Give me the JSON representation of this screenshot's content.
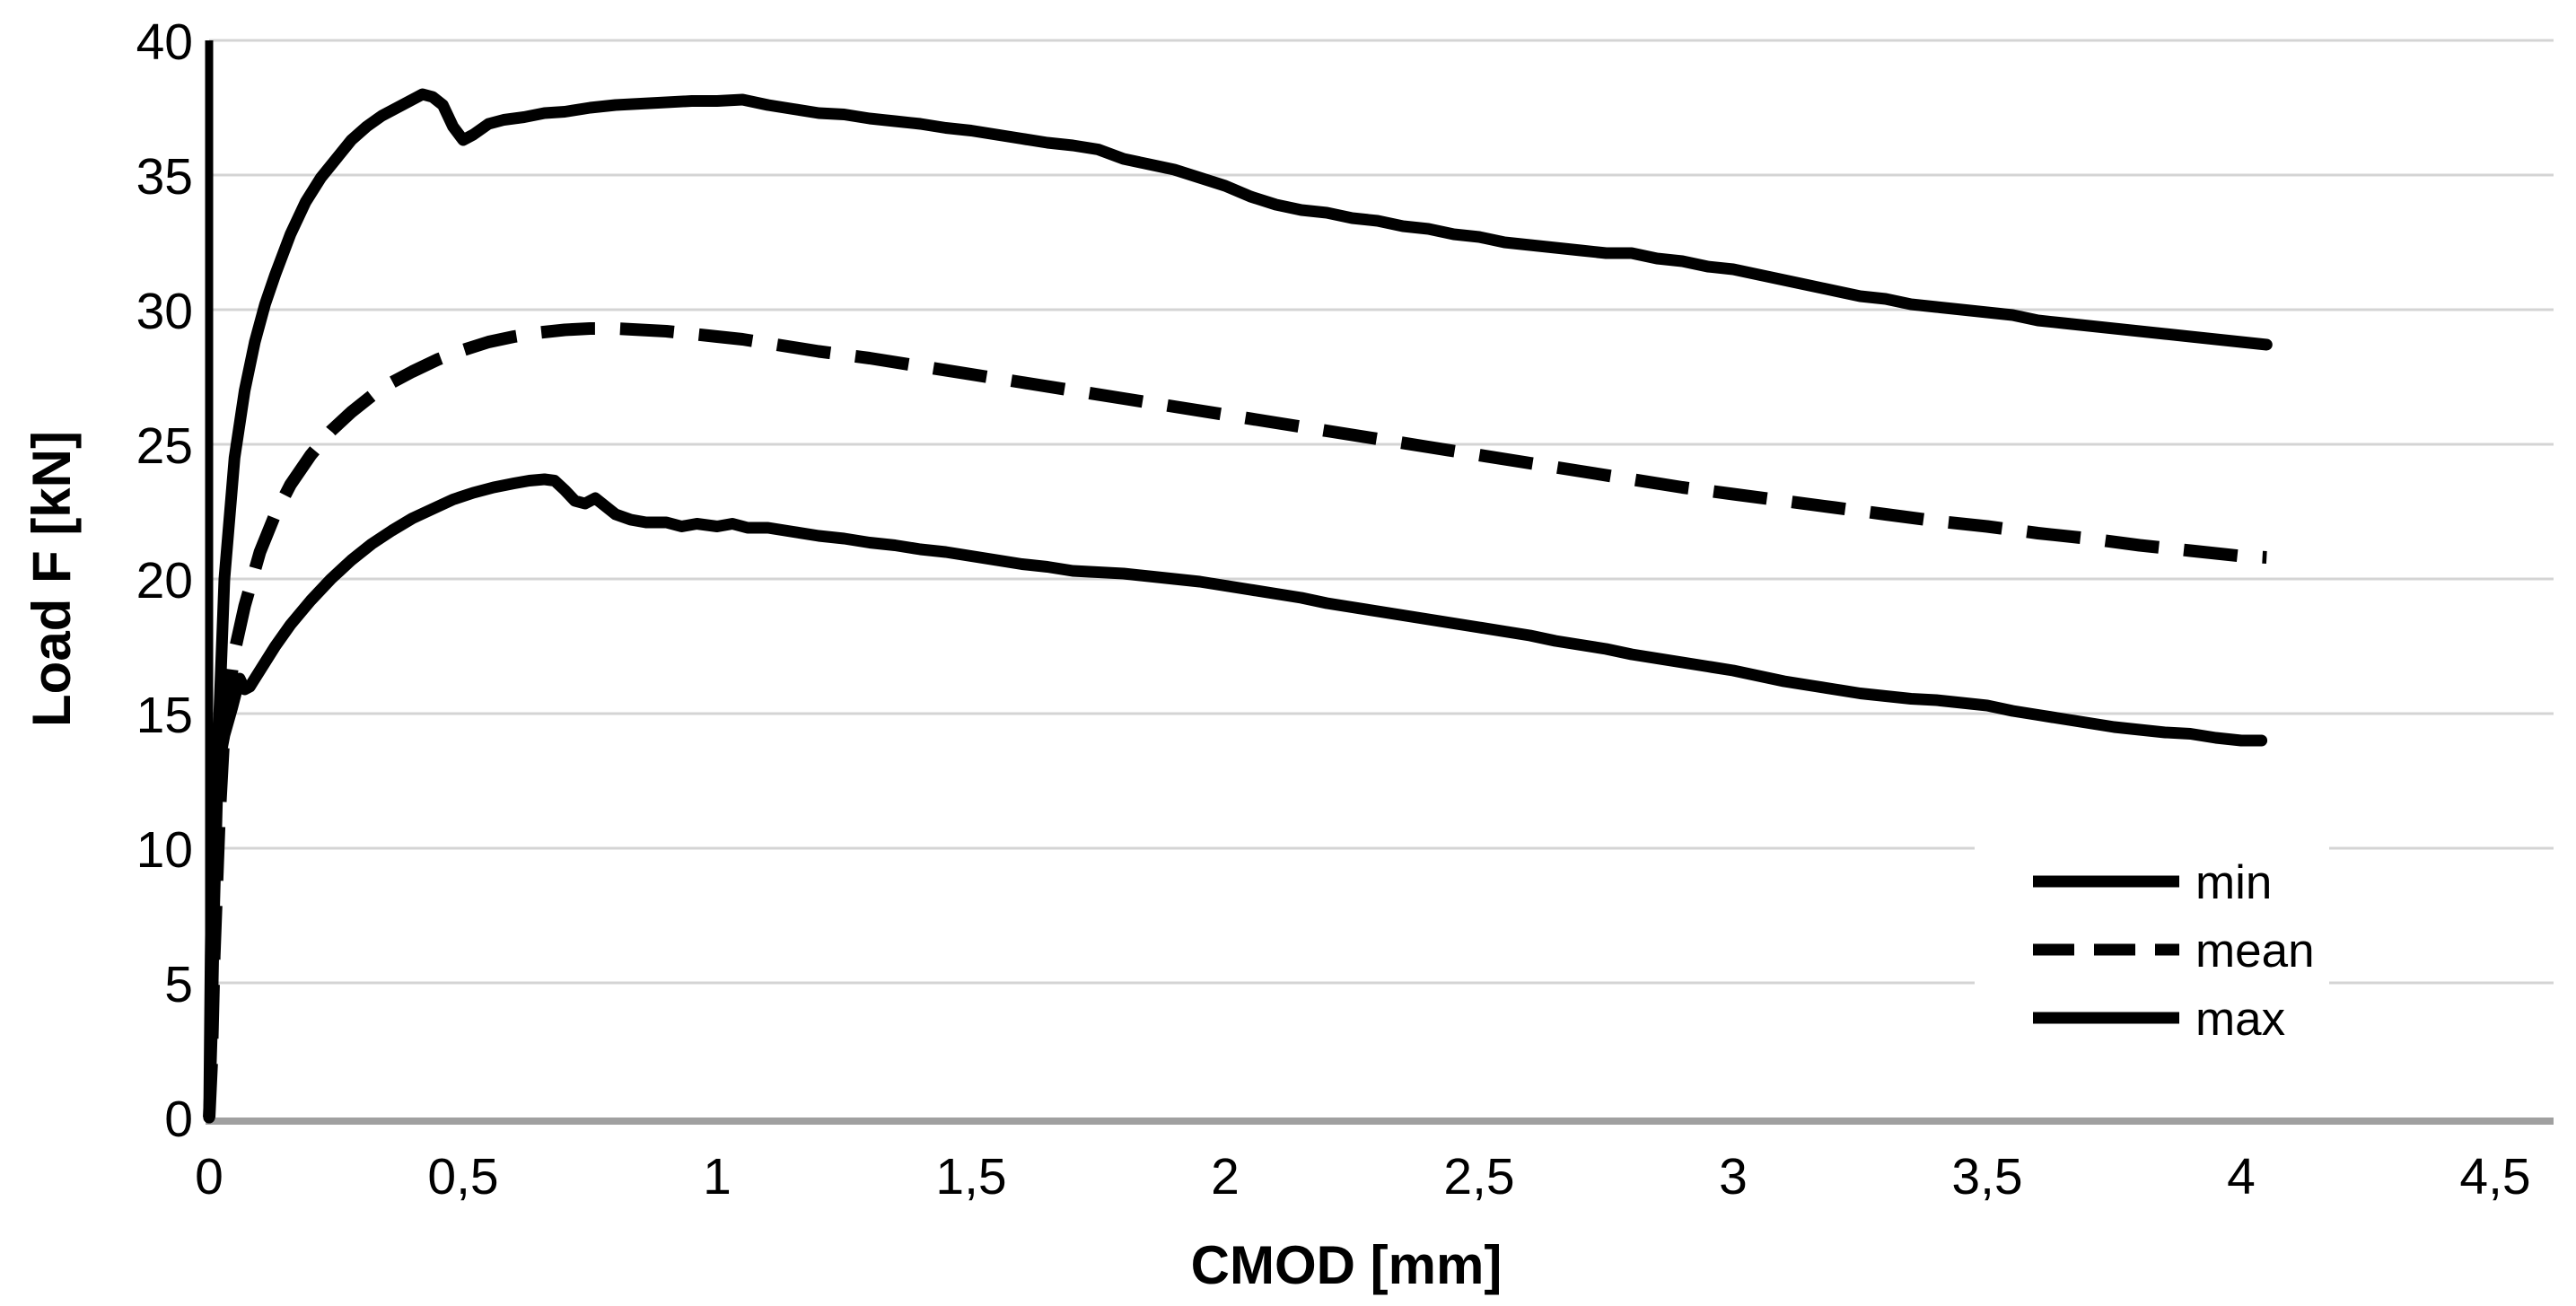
{
  "chart_data": {
    "type": "line",
    "title": "",
    "xlabel": "CMOD [mm]",
    "ylabel": "Load F [kN]",
    "xlim": [
      0,
      4.5
    ],
    "ylim": [
      0,
      40
    ],
    "x_ticks": [
      0,
      0.5,
      1,
      1.5,
      2,
      2.5,
      3,
      3.5,
      4,
      4.5
    ],
    "x_tick_labels": [
      "0",
      "0,5",
      "1",
      "1,5",
      "2",
      "2,5",
      "3",
      "3,5",
      "4",
      "4,5"
    ],
    "y_ticks": [
      0,
      5,
      10,
      15,
      20,
      25,
      30,
      35,
      40
    ],
    "y_tick_labels": [
      "0",
      "5",
      "10",
      "15",
      "20",
      "25",
      "30",
      "35",
      "40"
    ],
    "grid": "horizontal-only",
    "gridline_color": "#d4d4d4",
    "x_axis_color": "#a0a0a0",
    "y_axis_color": "#000000",
    "curve_color": "#000000",
    "legend_position": "inside-bottom-right",
    "series": [
      {
        "name": "min",
        "style": "solid",
        "color": "#000000",
        "points": [
          [
            0,
            0
          ],
          [
            0.003,
            6
          ],
          [
            0.006,
            10.5
          ],
          [
            0.008,
            12.4
          ],
          [
            0.012,
            11.6
          ],
          [
            0.02,
            13.2
          ],
          [
            0.03,
            14.2
          ],
          [
            0.045,
            15.2
          ],
          [
            0.06,
            16.3
          ],
          [
            0.07,
            15.9
          ],
          [
            0.08,
            16.0
          ],
          [
            0.1,
            16.6
          ],
          [
            0.13,
            17.5
          ],
          [
            0.16,
            18.3
          ],
          [
            0.2,
            19.2
          ],
          [
            0.24,
            20.0
          ],
          [
            0.28,
            20.7
          ],
          [
            0.32,
            21.3
          ],
          [
            0.36,
            21.8
          ],
          [
            0.4,
            22.25
          ],
          [
            0.44,
            22.6
          ],
          [
            0.48,
            22.95
          ],
          [
            0.52,
            23.2
          ],
          [
            0.56,
            23.4
          ],
          [
            0.6,
            23.55
          ],
          [
            0.63,
            23.65
          ],
          [
            0.66,
            23.7
          ],
          [
            0.68,
            23.65
          ],
          [
            0.7,
            23.3
          ],
          [
            0.72,
            22.9
          ],
          [
            0.74,
            22.8
          ],
          [
            0.76,
            23.0
          ],
          [
            0.78,
            22.7
          ],
          [
            0.8,
            22.4
          ],
          [
            0.83,
            22.2
          ],
          [
            0.86,
            22.1
          ],
          [
            0.9,
            22.1
          ],
          [
            0.93,
            21.95
          ],
          [
            0.96,
            22.05
          ],
          [
            1.0,
            21.95
          ],
          [
            1.03,
            22.05
          ],
          [
            1.06,
            21.9
          ],
          [
            1.1,
            21.9
          ],
          [
            1.15,
            21.75
          ],
          [
            1.2,
            21.6
          ],
          [
            1.25,
            21.5
          ],
          [
            1.3,
            21.35
          ],
          [
            1.35,
            21.25
          ],
          [
            1.4,
            21.1
          ],
          [
            1.45,
            21.0
          ],
          [
            1.5,
            20.85
          ],
          [
            1.55,
            20.7
          ],
          [
            1.6,
            20.55
          ],
          [
            1.65,
            20.45
          ],
          [
            1.7,
            20.3
          ],
          [
            1.75,
            20.25
          ],
          [
            1.8,
            20.2
          ],
          [
            1.85,
            20.1
          ],
          [
            1.9,
            20.0
          ],
          [
            1.95,
            19.9
          ],
          [
            2.0,
            19.75
          ],
          [
            2.05,
            19.6
          ],
          [
            2.1,
            19.45
          ],
          [
            2.15,
            19.3
          ],
          [
            2.2,
            19.1
          ],
          [
            2.25,
            18.95
          ],
          [
            2.3,
            18.8
          ],
          [
            2.35,
            18.65
          ],
          [
            2.4,
            18.5
          ],
          [
            2.45,
            18.35
          ],
          [
            2.5,
            18.2
          ],
          [
            2.55,
            18.05
          ],
          [
            2.6,
            17.9
          ],
          [
            2.65,
            17.7
          ],
          [
            2.7,
            17.55
          ],
          [
            2.75,
            17.4
          ],
          [
            2.8,
            17.2
          ],
          [
            2.85,
            17.05
          ],
          [
            2.9,
            16.9
          ],
          [
            2.95,
            16.75
          ],
          [
            3.0,
            16.6
          ],
          [
            3.05,
            16.4
          ],
          [
            3.1,
            16.2
          ],
          [
            3.15,
            16.05
          ],
          [
            3.2,
            15.9
          ],
          [
            3.25,
            15.75
          ],
          [
            3.3,
            15.65
          ],
          [
            3.35,
            15.55
          ],
          [
            3.4,
            15.5
          ],
          [
            3.45,
            15.4
          ],
          [
            3.5,
            15.3
          ],
          [
            3.55,
            15.1
          ],
          [
            3.6,
            14.95
          ],
          [
            3.65,
            14.8
          ],
          [
            3.7,
            14.65
          ],
          [
            3.75,
            14.5
          ],
          [
            3.8,
            14.4
          ],
          [
            3.85,
            14.3
          ],
          [
            3.9,
            14.25
          ],
          [
            3.95,
            14.1
          ],
          [
            4.0,
            14.0
          ],
          [
            4.04,
            14.0
          ]
        ]
      },
      {
        "name": "mean",
        "style": "dashed",
        "color": "#000000",
        "points": [
          [
            0,
            0
          ],
          [
            0.005,
            2
          ],
          [
            0.01,
            6
          ],
          [
            0.02,
            11
          ],
          [
            0.03,
            14.5
          ],
          [
            0.05,
            17.3
          ],
          [
            0.07,
            19.0
          ],
          [
            0.1,
            21.0
          ],
          [
            0.13,
            22.4
          ],
          [
            0.16,
            23.5
          ],
          [
            0.2,
            24.6
          ],
          [
            0.24,
            25.5
          ],
          [
            0.28,
            26.2
          ],
          [
            0.32,
            26.8
          ],
          [
            0.36,
            27.3
          ],
          [
            0.4,
            27.7
          ],
          [
            0.45,
            28.15
          ],
          [
            0.5,
            28.5
          ],
          [
            0.55,
            28.8
          ],
          [
            0.6,
            29.0
          ],
          [
            0.65,
            29.15
          ],
          [
            0.7,
            29.25
          ],
          [
            0.75,
            29.3
          ],
          [
            0.8,
            29.3
          ],
          [
            0.85,
            29.25
          ],
          [
            0.9,
            29.2
          ],
          [
            0.95,
            29.1
          ],
          [
            1.0,
            29.0
          ],
          [
            1.05,
            28.9
          ],
          [
            1.1,
            28.75
          ],
          [
            1.15,
            28.6
          ],
          [
            1.2,
            28.45
          ],
          [
            1.3,
            28.2
          ],
          [
            1.4,
            27.9
          ],
          [
            1.5,
            27.6
          ],
          [
            1.6,
            27.3
          ],
          [
            1.7,
            27.0
          ],
          [
            1.8,
            26.7
          ],
          [
            1.9,
            26.4
          ],
          [
            2.0,
            26.1
          ],
          [
            2.1,
            25.8
          ],
          [
            2.2,
            25.5
          ],
          [
            2.3,
            25.2
          ],
          [
            2.4,
            24.9
          ],
          [
            2.5,
            24.6
          ],
          [
            2.6,
            24.3
          ],
          [
            2.7,
            24.0
          ],
          [
            2.8,
            23.7
          ],
          [
            2.9,
            23.4
          ],
          [
            3.0,
            23.15
          ],
          [
            3.1,
            22.9
          ],
          [
            3.2,
            22.65
          ],
          [
            3.3,
            22.4
          ],
          [
            3.4,
            22.15
          ],
          [
            3.5,
            21.95
          ],
          [
            3.6,
            21.7
          ],
          [
            3.7,
            21.5
          ],
          [
            3.8,
            21.25
          ],
          [
            3.9,
            21.05
          ],
          [
            4.0,
            20.85
          ],
          [
            4.05,
            20.8
          ]
        ]
      },
      {
        "name": "max",
        "style": "solid",
        "color": "#000000",
        "points": [
          [
            0,
            0
          ],
          [
            0.005,
            3
          ],
          [
            0.01,
            8
          ],
          [
            0.02,
            15
          ],
          [
            0.03,
            20
          ],
          [
            0.05,
            24.5
          ],
          [
            0.07,
            27.0
          ],
          [
            0.09,
            28.8
          ],
          [
            0.11,
            30.2
          ],
          [
            0.13,
            31.3
          ],
          [
            0.16,
            32.8
          ],
          [
            0.19,
            34.0
          ],
          [
            0.22,
            34.9
          ],
          [
            0.25,
            35.6
          ],
          [
            0.28,
            36.3
          ],
          [
            0.31,
            36.8
          ],
          [
            0.34,
            37.2
          ],
          [
            0.37,
            37.5
          ],
          [
            0.4,
            37.8
          ],
          [
            0.42,
            38.0
          ],
          [
            0.44,
            37.9
          ],
          [
            0.46,
            37.6
          ],
          [
            0.48,
            36.8
          ],
          [
            0.5,
            36.3
          ],
          [
            0.52,
            36.5
          ],
          [
            0.55,
            36.9
          ],
          [
            0.58,
            37.05
          ],
          [
            0.62,
            37.15
          ],
          [
            0.66,
            37.3
          ],
          [
            0.7,
            37.35
          ],
          [
            0.75,
            37.5
          ],
          [
            0.8,
            37.6
          ],
          [
            0.85,
            37.65
          ],
          [
            0.9,
            37.7
          ],
          [
            0.95,
            37.75
          ],
          [
            1.0,
            37.75
          ],
          [
            1.05,
            37.8
          ],
          [
            1.1,
            37.6
          ],
          [
            1.15,
            37.45
          ],
          [
            1.2,
            37.3
          ],
          [
            1.25,
            37.25
          ],
          [
            1.3,
            37.1
          ],
          [
            1.35,
            37.0
          ],
          [
            1.4,
            36.9
          ],
          [
            1.45,
            36.75
          ],
          [
            1.5,
            36.65
          ],
          [
            1.55,
            36.5
          ],
          [
            1.6,
            36.35
          ],
          [
            1.65,
            36.2
          ],
          [
            1.7,
            36.1
          ],
          [
            1.75,
            35.95
          ],
          [
            1.8,
            35.6
          ],
          [
            1.85,
            35.4
          ],
          [
            1.9,
            35.2
          ],
          [
            1.95,
            34.9
          ],
          [
            2.0,
            34.6
          ],
          [
            2.05,
            34.2
          ],
          [
            2.1,
            33.9
          ],
          [
            2.15,
            33.7
          ],
          [
            2.2,
            33.6
          ],
          [
            2.25,
            33.4
          ],
          [
            2.3,
            33.3
          ],
          [
            2.35,
            33.1
          ],
          [
            2.4,
            33.0
          ],
          [
            2.45,
            32.8
          ],
          [
            2.5,
            32.7
          ],
          [
            2.55,
            32.5
          ],
          [
            2.6,
            32.4
          ],
          [
            2.65,
            32.3
          ],
          [
            2.7,
            32.2
          ],
          [
            2.75,
            32.1
          ],
          [
            2.8,
            32.1
          ],
          [
            2.85,
            31.9
          ],
          [
            2.9,
            31.8
          ],
          [
            2.95,
            31.6
          ],
          [
            3.0,
            31.5
          ],
          [
            3.05,
            31.3
          ],
          [
            3.1,
            31.1
          ],
          [
            3.15,
            30.9
          ],
          [
            3.2,
            30.7
          ],
          [
            3.25,
            30.5
          ],
          [
            3.3,
            30.4
          ],
          [
            3.35,
            30.2
          ],
          [
            3.4,
            30.1
          ],
          [
            3.45,
            30.0
          ],
          [
            3.5,
            29.9
          ],
          [
            3.55,
            29.8
          ],
          [
            3.6,
            29.6
          ],
          [
            3.65,
            29.5
          ],
          [
            3.7,
            29.4
          ],
          [
            3.75,
            29.3
          ],
          [
            3.8,
            29.2
          ],
          [
            3.85,
            29.1
          ],
          [
            3.9,
            29.0
          ],
          [
            3.95,
            28.9
          ],
          [
            4.0,
            28.8
          ],
          [
            4.05,
            28.7
          ]
        ]
      }
    ]
  },
  "legend": {
    "items": [
      "min",
      "mean",
      "max"
    ]
  }
}
